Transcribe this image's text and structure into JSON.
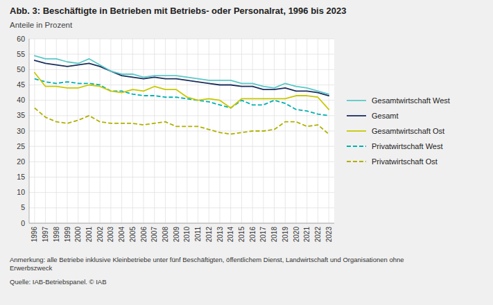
{
  "chart_data": {
    "type": "line",
    "title": "Abb. 3: Beschäftigte in Betrieben mit Betriebs- oder Personalrat, 1996 bis 2023",
    "subtitle": "Anteile in Prozent",
    "annotations": [
      "Anmerkung: alle Betriebe inklusive Kleinbetriebe unter fünf Beschäftigten, öffentlichem Dienst, Landwirtschaft und Organisationen ohne\nErwerbszweck",
      "Quelle: IAB-Betriebspanel.  © IAB"
    ],
    "x": [
      1996,
      1997,
      1998,
      1999,
      2000,
      2001,
      2002,
      2003,
      2004,
      2005,
      2006,
      2007,
      2008,
      2009,
      2010,
      2011,
      2012,
      2013,
      2014,
      2015,
      2016,
      2017,
      2018,
      2019,
      2020,
      2021,
      2022,
      2023
    ],
    "xlim": [
      1995.5,
      2023.5
    ],
    "xticks": [
      1996,
      1997,
      1998,
      1999,
      2000,
      2001,
      2002,
      2003,
      2004,
      2005,
      2006,
      2007,
      2008,
      2009,
      2010,
      2011,
      2012,
      2013,
      2014,
      2015,
      2016,
      2017,
      2018,
      2019,
      2020,
      2021,
      2022,
      2023
    ],
    "ylim": [
      0,
      60
    ],
    "yticks": [
      0,
      5,
      10,
      15,
      20,
      25,
      30,
      35,
      40,
      45,
      50,
      55,
      60
    ],
    "grid": true,
    "legend": "right",
    "series": [
      {
        "name": "Gesamtwirtschaft West",
        "color": "#5BC8C8",
        "line_style": "solid",
        "values": [
          54.5,
          53.5,
          53.5,
          52.5,
          52.0,
          53.5,
          51.5,
          49.5,
          48.5,
          48.5,
          47.5,
          48.0,
          48.0,
          48.0,
          47.5,
          47.0,
          46.5,
          46.5,
          46.5,
          45.5,
          45.5,
          44.5,
          44.0,
          45.5,
          44.5,
          44.0,
          43.0,
          42.0
        ]
      },
      {
        "name": "Gesamt",
        "color": "#1A2E5C",
        "line_style": "solid",
        "values": [
          53.0,
          52.0,
          51.5,
          51.0,
          51.5,
          52.0,
          51.0,
          49.5,
          48.0,
          47.5,
          47.0,
          47.5,
          47.0,
          47.0,
          46.5,
          46.0,
          45.5,
          45.0,
          45.0,
          44.5,
          44.5,
          43.5,
          43.5,
          44.0,
          43.0,
          43.0,
          42.5,
          41.5
        ]
      },
      {
        "name": "Gesamtwirtschaft Ost",
        "color": "#C8C800",
        "line_style": "solid",
        "values": [
          49.0,
          44.5,
          44.5,
          44.0,
          44.0,
          45.0,
          44.5,
          43.0,
          42.5,
          43.5,
          43.0,
          44.5,
          43.5,
          43.5,
          41.0,
          40.0,
          40.5,
          40.0,
          37.5,
          40.5,
          40.5,
          40.5,
          40.5,
          40.5,
          41.5,
          41.5,
          41.0,
          37.0
        ]
      },
      {
        "name": "Privatwirtschaft West",
        "color": "#00B0B0",
        "line_style": "dashed",
        "values": [
          47.0,
          46.0,
          45.5,
          46.0,
          45.5,
          45.5,
          45.0,
          43.0,
          43.0,
          42.0,
          41.5,
          41.5,
          41.0,
          41.0,
          40.5,
          40.0,
          39.5,
          38.5,
          37.5,
          40.0,
          38.5,
          38.5,
          40.0,
          39.0,
          37.0,
          36.5,
          35.5,
          35.0
        ]
      },
      {
        "name": "Privatwirtschaft Ost",
        "color": "#B0B000",
        "line_style": "dashed",
        "values": [
          37.5,
          34.5,
          33.0,
          32.5,
          33.5,
          35.0,
          33.0,
          32.5,
          32.5,
          32.5,
          32.0,
          32.5,
          33.0,
          31.5,
          31.5,
          31.5,
          30.5,
          29.5,
          29.0,
          29.5,
          30.0,
          30.0,
          30.5,
          33.0,
          33.0,
          31.5,
          32.0,
          29.0
        ]
      }
    ]
  }
}
